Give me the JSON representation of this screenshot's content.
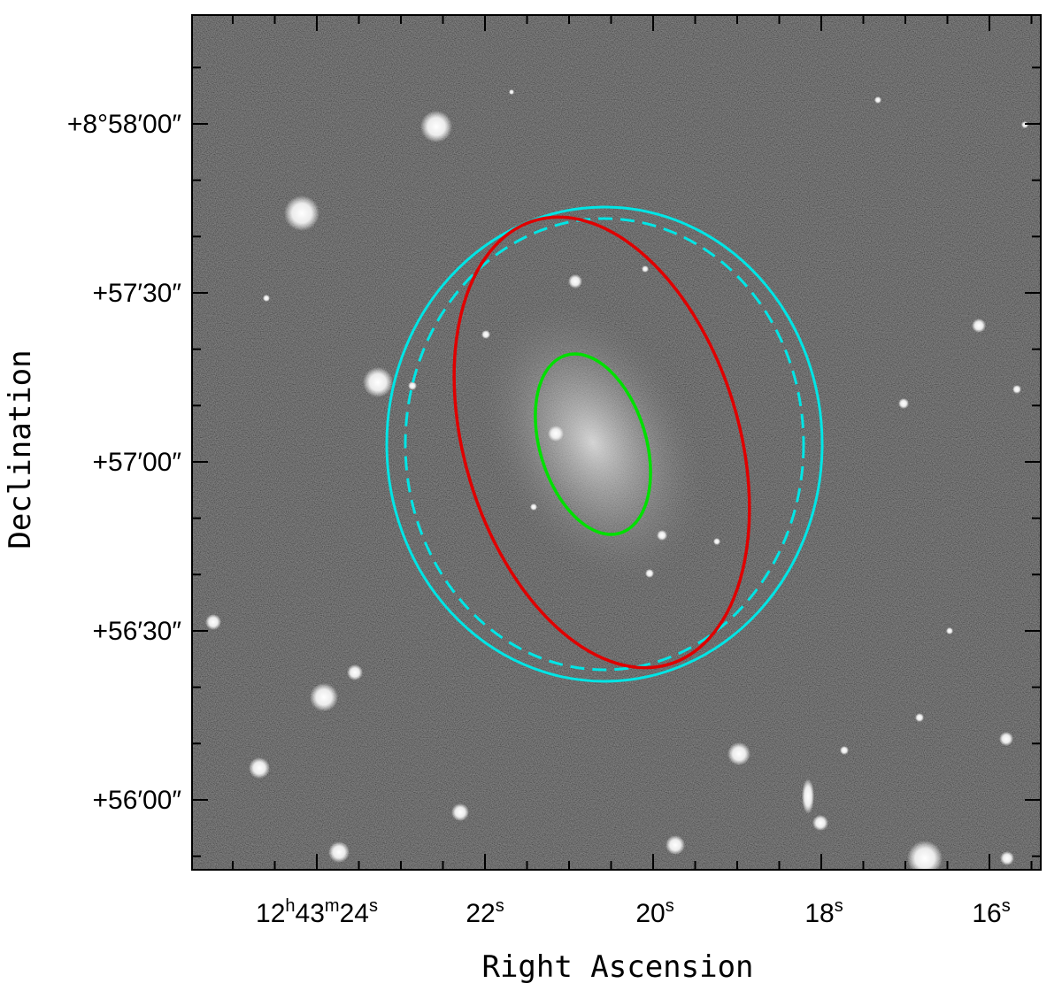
{
  "plot": {
    "x_axis_title": "Right Ascension",
    "y_axis_title": "Declination",
    "x_ticks": [
      {
        "ra_s": 24,
        "label_main": "12",
        "sup1": "h",
        "mid": "43",
        "sup2": "m",
        "tail": "24",
        "sup3": "s"
      },
      {
        "ra_s": 22,
        "label_main": "22",
        "sup3": "s"
      },
      {
        "ra_s": 20,
        "label_main": "20",
        "sup3": "s"
      },
      {
        "ra_s": 18,
        "label_main": "18",
        "sup3": "s"
      },
      {
        "ra_s": 16,
        "label_main": "16",
        "sup3": "s"
      }
    ],
    "y_ticks": [
      {
        "dec": "+8°58′00″",
        "label": "+8°58′00″"
      },
      {
        "dec": "+57′30″",
        "label": "+57′30″"
      },
      {
        "dec": "+57′00″",
        "label": "+57′00″"
      },
      {
        "dec": "+56′30″",
        "label": "+56′30″"
      },
      {
        "dec": "+56′00″",
        "label": "+56′00″"
      }
    ]
  },
  "image": {
    "description_colors": {
      "background": "#1e1e1e",
      "galaxy_glow": "#d8d8d8",
      "star": "#ffffff"
    }
  },
  "ellipses": [
    {
      "name": "green-ellipse",
      "color": "#00e000",
      "style": "solid"
    },
    {
      "name": "red-ellipse",
      "color": "#e00000",
      "style": "solid"
    },
    {
      "name": "cyan-ellipse-outer",
      "color": "#00e5e5",
      "style": "solid"
    },
    {
      "name": "cyan-ellipse-dashed",
      "color": "#00e5e5",
      "style": "dashed"
    }
  ]
}
